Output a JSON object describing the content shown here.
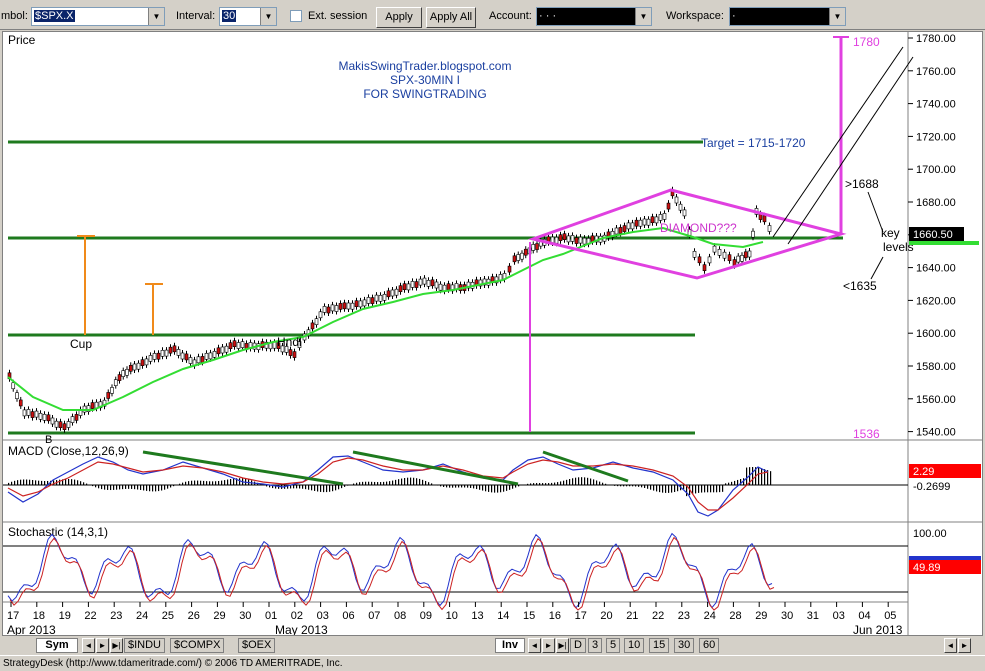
{
  "toolbar": {
    "symbol_label": "mbol:",
    "symbol_value": "$SPX.X",
    "interval_label": "Interval:",
    "interval_value": "30",
    "ext_session_label": "Ext. session",
    "apply_label": "Apply",
    "apply_all_label": "Apply All",
    "account_label": "Account:",
    "account_value": "·    ·    ·",
    "workspace_label": "Workspace:",
    "workspace_value": "·"
  },
  "chart": {
    "price_label": "Price",
    "watermark": [
      "MakisSwingTrader.blogspot.com",
      "SPX-30MIN I",
      "FOR SWINGTRADING"
    ],
    "target_text": "Target = 1715-1720",
    "diamond_text": "DIAMOND???",
    "cup_text": "Cup",
    "handle_text": "Hndl",
    "b_text": "B",
    "level_1780": "1780",
    "level_1536": "1536",
    "above_text": ">1688",
    "below_text": "<1635",
    "key_levels": [
      "key",
      "levels"
    ],
    "last_price": "1660.50",
    "price_ticks": [
      "1780.00",
      "1760.00",
      "1740.00",
      "1720.00",
      "1700.00",
      "1680.00",
      "1660.00",
      "1640.00",
      "1620.00",
      "1600.00",
      "1580.00",
      "1560.00",
      "1540.00"
    ],
    "macd_label": "MACD (Close,12,26,9)",
    "macd_value": "2.29",
    "macd_value2": "-0.2699",
    "stoch_label": "Stochastic (14,3,1)",
    "stoch_top": "100.00",
    "stoch_value": "49.89",
    "date_ticks": [
      "17",
      "18",
      "19",
      "22",
      "23",
      "24",
      "25",
      "26",
      "29",
      "30",
      "01",
      "02",
      "03",
      "06",
      "07",
      "08",
      "09",
      "10",
      "13",
      "14",
      "15",
      "16",
      "17",
      "20",
      "21",
      "22",
      "23",
      "24",
      "28",
      "29",
      "30",
      "31",
      "03",
      "04",
      "05"
    ],
    "month_labels": [
      "Apr 2013",
      "May 2013",
      "Jun 2013"
    ],
    "colors": {
      "green_line": "#1e7a1e",
      "ma_line": "#33dd33",
      "magenta": "#e040e0",
      "orange": "#f08a1a",
      "blue_text": "#1a3fa0",
      "red_box": "#ff0000"
    }
  },
  "tabs": {
    "sym": "Sym",
    "items": [
      "$INDU",
      "$COMPX",
      "$OEX"
    ],
    "inv": "Inv",
    "intervals": [
      "D",
      "3",
      "5",
      "10",
      "15",
      "30",
      "60"
    ]
  },
  "status": "StrategyDesk (http://www.tdameritrade.com/) © 2006 TD AMERITRADE, Inc."
}
